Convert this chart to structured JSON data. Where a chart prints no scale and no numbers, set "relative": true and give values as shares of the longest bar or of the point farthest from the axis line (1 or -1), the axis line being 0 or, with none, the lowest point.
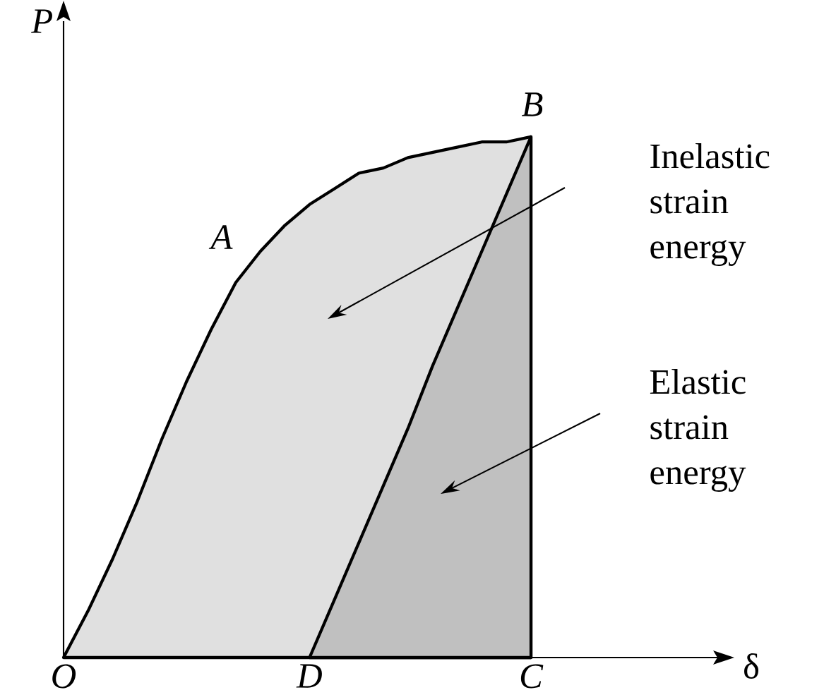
{
  "chart_data": {
    "type": "area",
    "relative": true,
    "ylabel": "P",
    "categories": [
      "O",
      null,
      null,
      null,
      null,
      null,
      null,
      null,
      null,
      null,
      "D",
      null,
      null,
      null,
      null,
      null,
      null,
      null,
      null,
      "C"
    ],
    "series": [
      {
        "color": "#e0e0e0",
        "values": [
          0,
          0.09,
          0.19,
          0.3,
          0.42,
          0.53,
          0.63,
          0.72,
          0.78,
          0.83,
          0.87,
          0.9,
          0.93,
          0.94,
          0.96,
          0.97,
          0.98,
          0.99,
          0.99,
          1
        ]
      },
      {
        "color": "#c0c0c0",
        "values": [
          null,
          null,
          null,
          null,
          null,
          null,
          null,
          null,
          null,
          null,
          0,
          0.11,
          0.22,
          0.33,
          0.44,
          0.56,
          0.67,
          0.78,
          0.89,
          1
        ]
      }
    ],
    "annotations": [
      "A",
      "B",
      "Inelastic strain energy",
      "Elastic strain energy",
      "δ"
    ]
  }
}
